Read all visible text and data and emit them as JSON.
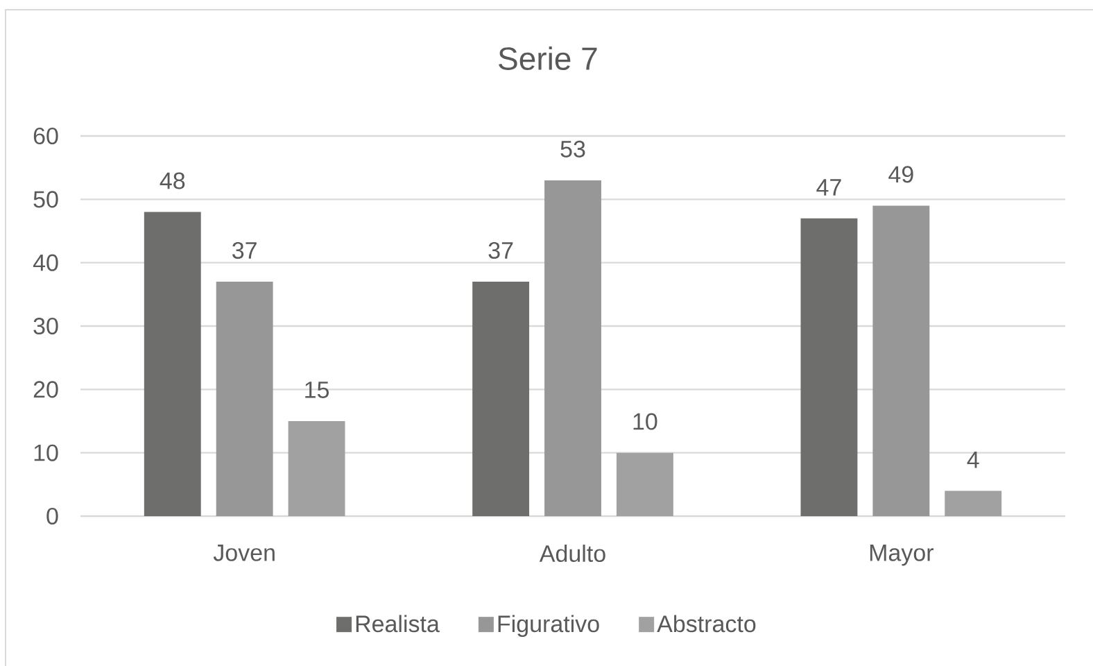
{
  "chart_data": {
    "type": "bar",
    "title": "Serie 7",
    "categories": [
      "Joven",
      "Adulto",
      "Mayor"
    ],
    "series": [
      {
        "name": "Realista",
        "color": "#6e6e6c",
        "values": [
          48,
          37,
          47
        ]
      },
      {
        "name": "Figurativo",
        "color": "#979797",
        "values": [
          37,
          53,
          49
        ]
      },
      {
        "name": "Abstracto",
        "color": "#a1a1a1",
        "values": [
          15,
          10,
          4
        ]
      }
    ],
    "ylim": [
      0,
      60
    ],
    "yticks": [
      0,
      10,
      20,
      30,
      40,
      50,
      60
    ],
    "grid": "y",
    "data_labels": true,
    "legend": "bottom"
  }
}
